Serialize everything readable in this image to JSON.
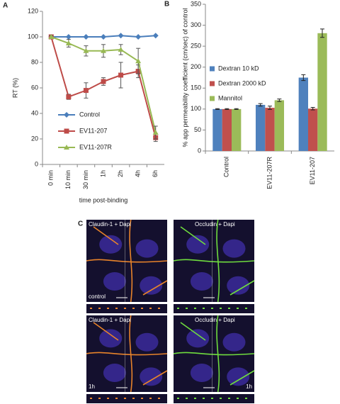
{
  "panel_labels": [
    "A",
    "B",
    "C"
  ],
  "chart_data": [
    {
      "type": "line",
      "y_label": "RT (%)",
      "x_label": "time post-binding",
      "categories": [
        "0 min",
        "10 min",
        "30 min",
        "1h",
        "2h",
        "4h",
        "6h"
      ],
      "ylim": [
        0,
        120
      ],
      "yticks": [
        0,
        20,
        40,
        60,
        80,
        100,
        120
      ],
      "series": [
        {
          "name": "Control",
          "color": "#4a7ebb",
          "marker": "diamond",
          "values": [
            100,
            100,
            100,
            100,
            101,
            100,
            101
          ]
        },
        {
          "name": "EV11-207",
          "color": "#be4b48",
          "marker": "square",
          "values": [
            100,
            53,
            58,
            65,
            70,
            73,
            21
          ],
          "errors": [
            1,
            2,
            6,
            3,
            10,
            5,
            3
          ]
        },
        {
          "name": "EV11-207R",
          "color": "#98b954",
          "marker": "triangle",
          "values": [
            100,
            95,
            89,
            89,
            90,
            81,
            25
          ],
          "errors": [
            1,
            3,
            4,
            5,
            4,
            10,
            5
          ]
        }
      ]
    },
    {
      "type": "bar",
      "y_label": "% app permeability coefficient (cm/sec) of control",
      "categories": [
        "Control",
        "EV11-207R",
        "EV11-207"
      ],
      "ylim": [
        0,
        350
      ],
      "yticks": [
        0,
        50,
        100,
        150,
        200,
        250,
        300,
        350
      ],
      "series": [
        {
          "name": "Dextran 10 kD",
          "color": "#4f81bd",
          "values": [
            100,
            110,
            175
          ],
          "errors": [
            1,
            3,
            7
          ]
        },
        {
          "name": "Dextran 2000 kD",
          "color": "#c0504d",
          "values": [
            100,
            103,
            101
          ],
          "errors": [
            1,
            4,
            3
          ]
        },
        {
          "name": "Mannitol",
          "color": "#9bbb59",
          "values": [
            100,
            121,
            281
          ],
          "errors": [
            1,
            3,
            10
          ]
        }
      ]
    }
  ],
  "images": [
    {
      "title": "Claudin-1 + Dapi",
      "label": "control"
    },
    {
      "title": "Occludin + Dapi"
    },
    {
      "title": "Claudin-1 + Dapi",
      "label": "1h"
    },
    {
      "title": "Occludin + Dapi",
      "label": "1h"
    }
  ]
}
